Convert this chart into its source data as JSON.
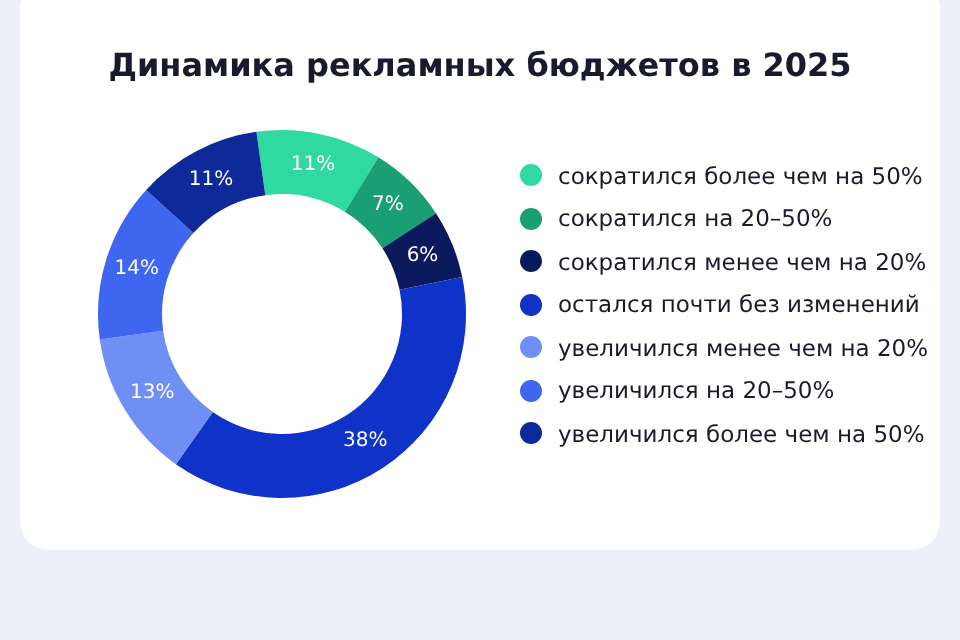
{
  "chart_data": {
    "type": "donut",
    "title": "Динамика рекламных бюджетов в 2025",
    "categories": [
      "сократился более чем на 50%",
      "сократился на 20–50%",
      "сократился менее чем на 20%",
      "остался почти без изменений",
      "увеличился менее чем на 20%",
      "увеличился на 20–50%",
      "увеличился более чем на 50%"
    ],
    "values": [
      11,
      7,
      6,
      38,
      13,
      14,
      11
    ],
    "value_labels": [
      "11%",
      "7%",
      "6%",
      "38%",
      "13%",
      "14%",
      "11%"
    ],
    "colors": [
      "#2fd9a0",
      "#1a9e74",
      "#0a1a5c",
      "#0f32c8",
      "#6f8ff5",
      "#3f66f0",
      "#0e2a9a"
    ],
    "legend": "right"
  }
}
